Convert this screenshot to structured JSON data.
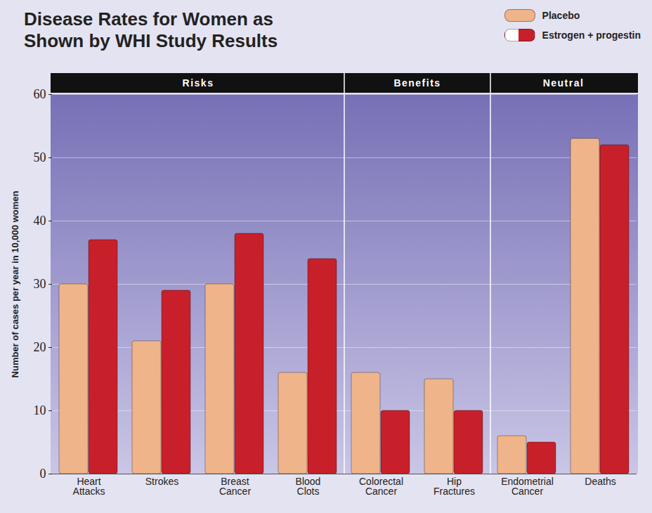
{
  "chart_data": {
    "type": "bar",
    "title": "Disease Rates for Women as Shown by WHI Study Results",
    "y_label": "Number of cases per year in 10,000 women",
    "categories": [
      "Heart Attacks",
      "Strokes",
      "Breast Cancer",
      "Blood Clots",
      "Colorectal Cancer",
      "Hip Fractures",
      "Endometrial Cancer",
      "Deaths"
    ],
    "series": [
      {
        "name": "Placebo",
        "color": "#f0b48a",
        "values": [
          30,
          21,
          30,
          16,
          16,
          15,
          6,
          53
        ]
      },
      {
        "name": "Estrogen + progestin",
        "color": "#c8202a",
        "values": [
          37,
          29,
          38,
          34,
          10,
          10,
          5,
          52
        ]
      }
    ],
    "annotations": [
      {
        "text": "Risks",
        "categories": [
          "Heart Attacks",
          "Strokes",
          "Breast Cancer",
          "Blood Clots"
        ]
      },
      {
        "text": "Benefits",
        "categories": [
          "Colorectal Cancer",
          "Hip Fractures"
        ]
      },
      {
        "text": "Neutral",
        "categories": [
          "Endometrial Cancer",
          "Deaths"
        ]
      }
    ],
    "ylim": [
      0,
      60
    ],
    "yticks": [
      0,
      10,
      20,
      30,
      40,
      50,
      60
    ],
    "grid": true,
    "legend": "top-right"
  }
}
